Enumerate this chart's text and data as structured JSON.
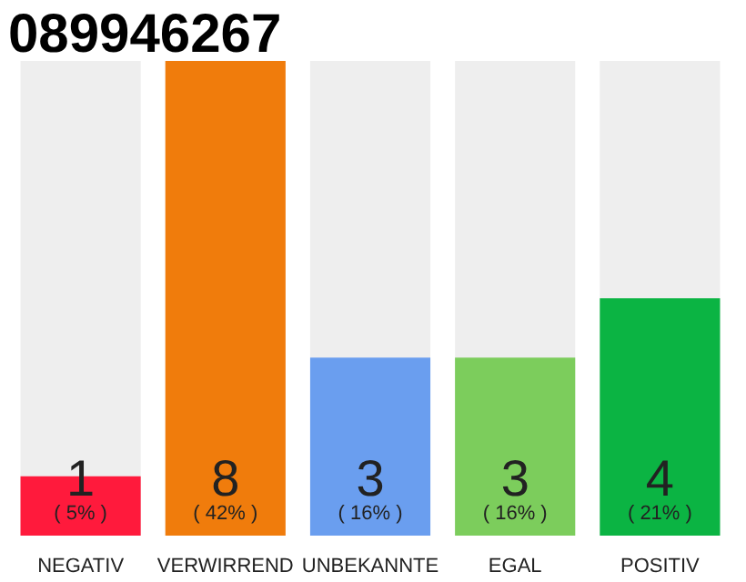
{
  "chart_data": {
    "type": "bar",
    "title": "089946267",
    "categories": [
      "NEGATIV",
      "VERWIRREND",
      "UNBEKANNTE",
      "EGAL",
      "POSITIV"
    ],
    "values": [
      1,
      8,
      3,
      3,
      4
    ],
    "colors": [
      "#ff1a3c",
      "#f07c0c",
      "#6a9eef",
      "#7ccd5c",
      "#0bb443"
    ],
    "ylim": [
      0,
      8
    ],
    "data_labels": true,
    "tick_labels": "x",
    "grid": false,
    "annotations": [
      "( 5% )",
      "( 42% )",
      "( 16% )",
      "( 16% )",
      "( 21% )"
    ]
  }
}
